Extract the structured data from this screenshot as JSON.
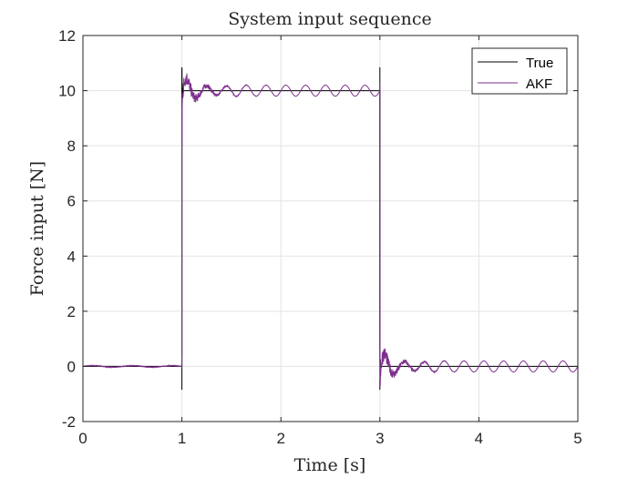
{
  "chart_data": {
    "type": "line",
    "title": "System input sequence",
    "xlabel": "Time [s]",
    "ylabel": "Force input [N]",
    "xlim": [
      0,
      5
    ],
    "ylim": [
      -2,
      12
    ],
    "xticks": [
      0,
      1,
      2,
      3,
      4,
      5
    ],
    "yticks": [
      -2,
      0,
      2,
      4,
      6,
      8,
      10,
      12
    ],
    "grid": true,
    "legend_position": "top-right",
    "series": [
      {
        "name": "True",
        "color": "#000000",
        "description_points": [
          [
            0,
            0
          ],
          [
            1,
            0
          ],
          [
            1,
            10
          ],
          [
            3,
            10
          ],
          [
            3,
            0
          ],
          [
            5,
            0
          ]
        ],
        "transient_spikes": [
          [
            1,
            10.8
          ],
          [
            1,
            -0.8
          ],
          [
            3,
            10.8
          ],
          [
            3,
            -0.8
          ]
        ]
      },
      {
        "name": "AKF",
        "color": "#7e2f8e",
        "levels": [
          [
            0,
            1,
            0
          ],
          [
            1,
            3,
            10
          ],
          [
            3,
            5,
            0
          ]
        ],
        "oscillation_amplitude": 0.2,
        "oscillation_period": 0.2,
        "transient_peaks": [
          [
            1,
            8.0
          ],
          [
            3,
            1.7
          ],
          [
            3,
            -0.7
          ]
        ]
      }
    ]
  }
}
